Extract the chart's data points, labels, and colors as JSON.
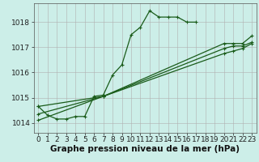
{
  "background_color": "#cceee8",
  "grid_color": "#b0b0b0",
  "line_color": "#1a5c1a",
  "xlabel": "Graphe pression niveau de la mer (hPa)",
  "xlabel_fontsize": 7.5,
  "tick_fontsize": 6.5,
  "xlim": [
    -0.5,
    23.5
  ],
  "ylim": [
    1013.6,
    1018.75
  ],
  "yticks": [
    1014,
    1015,
    1016,
    1017,
    1018
  ],
  "xticks": [
    0,
    1,
    2,
    3,
    4,
    5,
    6,
    7,
    8,
    9,
    10,
    11,
    12,
    13,
    14,
    15,
    16,
    17,
    18,
    19,
    20,
    21,
    22,
    23
  ],
  "main_x": [
    0,
    1,
    2,
    3,
    4,
    5,
    6,
    7,
    8,
    9,
    10,
    11,
    12,
    13,
    14,
    15,
    16,
    17
  ],
  "main_y": [
    1014.65,
    1014.3,
    1014.15,
    1014.15,
    1014.25,
    1014.25,
    1015.05,
    1015.1,
    1015.9,
    1016.3,
    1017.5,
    1017.8,
    1018.45,
    1018.2,
    1018.2,
    1018.2,
    1018.0,
    1018.0
  ],
  "diag1_x": [
    0,
    7,
    20,
    21,
    22,
    23
  ],
  "diag1_y": [
    1014.65,
    1015.05,
    1017.15,
    1017.15,
    1017.15,
    1017.45
  ],
  "diag2_x": [
    0,
    7,
    20,
    21,
    22,
    23
  ],
  "diag2_y": [
    1014.35,
    1015.05,
    1016.95,
    1017.05,
    1017.05,
    1017.2
  ],
  "diag3_x": [
    0,
    7,
    20,
    21,
    22,
    23
  ],
  "diag3_y": [
    1014.1,
    1015.05,
    1016.75,
    1016.85,
    1016.95,
    1017.15
  ]
}
